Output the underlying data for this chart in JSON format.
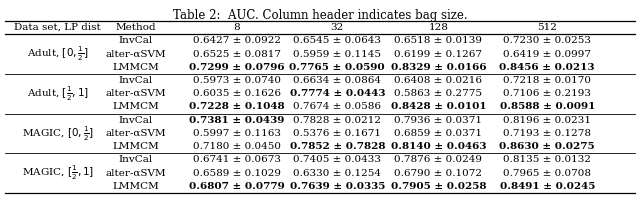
{
  "title": "Table 2:  AUC. Column header indicates bag size.",
  "col_headers": [
    "Data set, LP dist",
    "Method",
    "8",
    "32",
    "128",
    "512"
  ],
  "groups": [
    {
      "dataset": [
        "Adult, $[0, \\frac{1}{2}]$"
      ],
      "dataset_latex": "Adult, $[0, \\frac{1}{2}]$",
      "rows": [
        {
          "method": "InvCal",
          "vals": [
            "0.6427 ± 0.0922",
            "0.6545 ± 0.0643",
            "0.6518 ± 0.0139",
            "0.7230 ± 0.0253"
          ],
          "bold": [
            false,
            false,
            false,
            false
          ]
        },
        {
          "method": "alter-αSVM",
          "vals": [
            "0.6525 ± 0.0817",
            "0.5959 ± 0.1145",
            "0.6199 ± 0.1267",
            "0.6419 ± 0.0997"
          ],
          "bold": [
            false,
            false,
            false,
            false
          ]
        },
        {
          "method": "LMMCM",
          "vals": [
            "0.7299 ± 0.0796",
            "0.7765 ± 0.0590",
            "0.8329 ± 0.0166",
            "0.8456 ± 0.0213"
          ],
          "bold": [
            true,
            true,
            true,
            true
          ]
        }
      ]
    },
    {
      "dataset_latex": "Adult, $[\\frac{1}{2}, 1]$",
      "rows": [
        {
          "method": "InvCal",
          "vals": [
            "0.5973 ± 0.0740",
            "0.6634 ± 0.0864",
            "0.6408 ± 0.0216",
            "0.7218 ± 0.0170"
          ],
          "bold": [
            false,
            false,
            false,
            false
          ]
        },
        {
          "method": "alter-αSVM",
          "vals": [
            "0.6035 ± 0.1626",
            "0.7774 ± 0.0443",
            "0.5863 ± 0.2775",
            "0.7106 ± 0.2193"
          ],
          "bold": [
            false,
            true,
            false,
            false
          ]
        },
        {
          "method": "LMMCM",
          "vals": [
            "0.7228 ± 0.1048",
            "0.7674 ± 0.0586",
            "0.8428 ± 0.0101",
            "0.8588 ± 0.0091"
          ],
          "bold": [
            true,
            false,
            true,
            true
          ]
        }
      ]
    },
    {
      "dataset_latex": "MAGIC, $[0, \\frac{1}{2}]$",
      "rows": [
        {
          "method": "InvCal",
          "vals": [
            "0.7381 ± 0.0439",
            "0.7828 ± 0.0212",
            "0.7936 ± 0.0371",
            "0.8196 ± 0.0231"
          ],
          "bold": [
            true,
            false,
            false,
            false
          ]
        },
        {
          "method": "alter-αSVM",
          "vals": [
            "0.5997 ± 0.1163",
            "0.5376 ± 0.1671",
            "0.6859 ± 0.0371",
            "0.7193 ± 0.1278"
          ],
          "bold": [
            false,
            false,
            false,
            false
          ]
        },
        {
          "method": "LMMCM",
          "vals": [
            "0.7180 ± 0.0450",
            "0.7852 ± 0.7828",
            "0.8140 ± 0.0463",
            "0.8630 ± 0.0275"
          ],
          "bold": [
            false,
            true,
            true,
            true
          ]
        }
      ]
    },
    {
      "dataset_latex": "MAGIC, $[\\frac{1}{2}, 1]$",
      "rows": [
        {
          "method": "InvCal",
          "vals": [
            "0.6741 ± 0.0673",
            "0.7405 ± 0.0433",
            "0.7876 ± 0.0249",
            "0.8135 ± 0.0132"
          ],
          "bold": [
            false,
            false,
            false,
            false
          ]
        },
        {
          "method": "alter-αSVM",
          "vals": [
            "0.6589 ± 0.1029",
            "0.6330 ± 0.1254",
            "0.6790 ± 0.1072",
            "0.7965 ± 0.0708"
          ],
          "bold": [
            false,
            false,
            false,
            false
          ]
        },
        {
          "method": "LMMCM",
          "vals": [
            "0.6807 ± 0.0779",
            "0.7639 ± 0.0335",
            "0.7905 ± 0.0258",
            "0.8491 ± 0.0245"
          ],
          "bold": [
            true,
            true,
            true,
            true
          ]
        }
      ]
    }
  ],
  "fontsize": 7.5,
  "title_fontsize": 8.5
}
